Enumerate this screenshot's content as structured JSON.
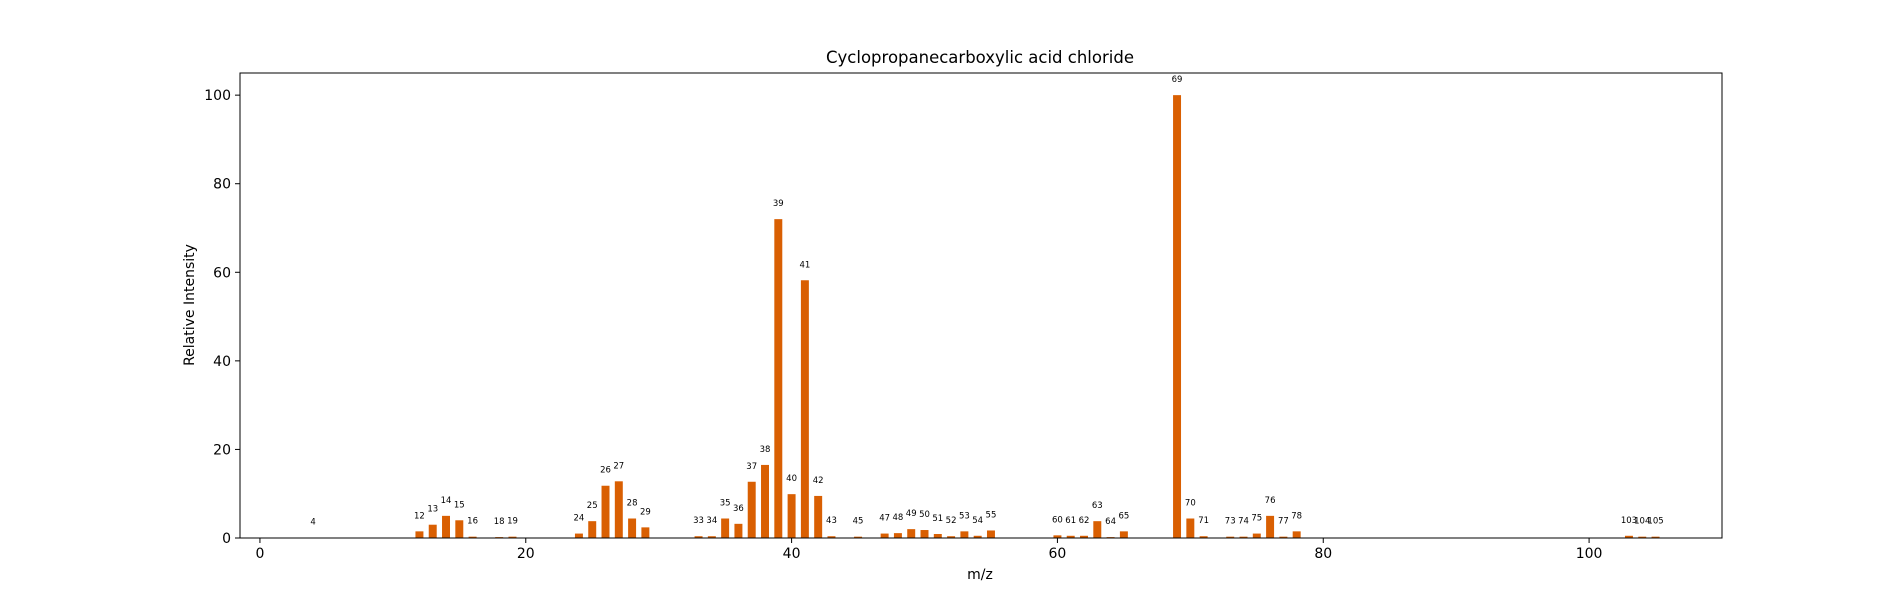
{
  "chart_data": {
    "type": "bar",
    "title": "Cyclopropanecarboxylic acid chloride",
    "xlabel": "m/z",
    "ylabel": "Relative Intensity",
    "xlim": [
      -1.5,
      110
    ],
    "ylim": [
      0,
      105
    ],
    "xticks": [
      0,
      20,
      40,
      60,
      80,
      100
    ],
    "yticks": [
      0,
      20,
      40,
      60,
      80,
      100
    ],
    "bar_color": "#d95f02",
    "grid": false,
    "legend": false,
    "x": [
      4,
      12,
      13,
      14,
      15,
      16,
      18,
      19,
      24,
      25,
      26,
      27,
      28,
      29,
      33,
      34,
      35,
      36,
      37,
      38,
      39,
      40,
      41,
      42,
      43,
      45,
      47,
      48,
      49,
      50,
      51,
      52,
      53,
      54,
      55,
      60,
      61,
      62,
      63,
      64,
      65,
      69,
      70,
      71,
      73,
      74,
      75,
      76,
      77,
      78,
      103,
      104,
      105
    ],
    "values": [
      0.1,
      1.5,
      3.0,
      5.0,
      4.0,
      0.3,
      0.2,
      0.3,
      1.0,
      3.8,
      11.8,
      12.8,
      4.4,
      2.4,
      0.4,
      0.4,
      4.4,
      3.2,
      12.7,
      16.5,
      72.0,
      9.9,
      58.2,
      9.5,
      0.4,
      0.3,
      1.0,
      1.1,
      2.0,
      1.8,
      0.9,
      0.4,
      1.5,
      0.5,
      1.7,
      0.6,
      0.5,
      0.5,
      3.8,
      0.2,
      1.5,
      100.0,
      4.4,
      0.4,
      0.3,
      0.3,
      1.0,
      5.0,
      0.3,
      1.5,
      0.5,
      0.3,
      0.3
    ],
    "bar_labels": [
      "4",
      "12",
      "13",
      "14",
      "15",
      "16",
      "18",
      "19",
      "24",
      "25",
      "26",
      "27",
      "28",
      "29",
      "33",
      "34",
      "35",
      "36",
      "37",
      "38",
      "39",
      "40",
      "41",
      "42",
      "43",
      "45",
      "47",
      "48",
      "49",
      "50",
      "51",
      "52",
      "53",
      "54",
      "55",
      "60",
      "61",
      "62",
      "63",
      "64",
      "65",
      "69",
      "70",
      "71",
      "73",
      "74",
      "75",
      "76",
      "77",
      "78",
      "103",
      "104",
      "105"
    ]
  }
}
